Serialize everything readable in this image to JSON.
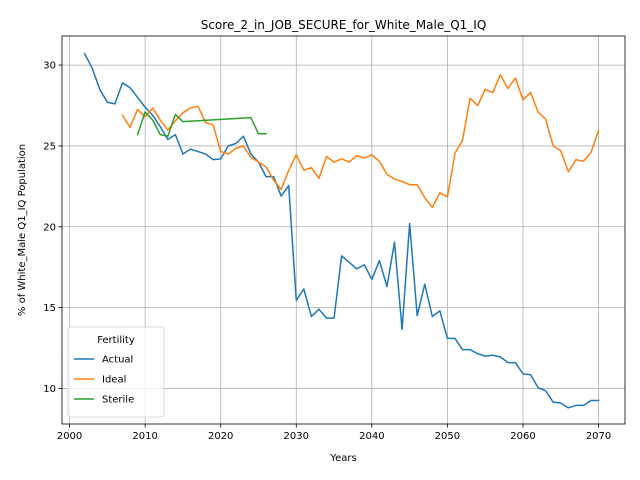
{
  "chart_data": {
    "type": "line",
    "title": "Score_2_in_JOB_SECURE_for_White_Male_Q1_IQ",
    "xlabel": "Years",
    "ylabel": "% of White_Male Q1_IQ Population",
    "xlim": [
      1999,
      2073.5
    ],
    "ylim": [
      7.8,
      31.8
    ],
    "xticks": [
      2000,
      2010,
      2020,
      2030,
      2040,
      2050,
      2060,
      2070
    ],
    "yticks": [
      10,
      15,
      20,
      25,
      30
    ],
    "grid": true,
    "legend": {
      "title": "Fertility",
      "placement": "lower-left"
    },
    "series": [
      {
        "name": "Actual",
        "color": "#1f77b4",
        "x": [
          2002,
          2003,
          2004,
          2005,
          2006,
          2007,
          2008,
          2009,
          2010,
          2011,
          2012,
          2013,
          2014,
          2015,
          2016,
          2017,
          2018,
          2019,
          2020,
          2021,
          2022,
          2023,
          2024,
          2025,
          2026,
          2027,
          2028,
          2029,
          2030,
          2031,
          2032,
          2033,
          2034,
          2035,
          2036,
          2037,
          2038,
          2039,
          2040,
          2041,
          2042,
          2043,
          2044,
          2045,
          2046,
          2047,
          2048,
          2049,
          2050,
          2051,
          2052,
          2053,
          2054,
          2055,
          2056,
          2057,
          2058,
          2059,
          2060,
          2061,
          2062,
          2063,
          2064,
          2065,
          2066,
          2067,
          2068,
          2069,
          2070
        ],
        "values": [
          30.7,
          29.8,
          28.5,
          27.7,
          27.6,
          28.9,
          28.6,
          28.0,
          27.4,
          26.9,
          26.2,
          25.4,
          25.7,
          24.5,
          24.8,
          24.65,
          24.5,
          24.15,
          24.2,
          25.0,
          25.15,
          25.6,
          24.5,
          24.0,
          23.1,
          23.1,
          21.9,
          22.55,
          15.45,
          16.15,
          14.45,
          14.9,
          14.35,
          14.35,
          18.2,
          17.8,
          17.4,
          17.65,
          16.75,
          17.9,
          16.3,
          19.05,
          13.65,
          20.2,
          14.5,
          16.45,
          14.45,
          14.8,
          13.1,
          13.1,
          12.4,
          12.4,
          12.15,
          12.0,
          12.05,
          11.95,
          11.6,
          11.6,
          10.9,
          10.85,
          10.05,
          9.85,
          9.15,
          9.1,
          8.8,
          8.95,
          8.95,
          9.25,
          9.25
        ]
      },
      {
        "name": "Ideal",
        "color": "#ff7f0e",
        "x": [
          2007,
          2008,
          2009,
          2010,
          2011,
          2012,
          2013,
          2014,
          2015,
          2016,
          2017,
          2018,
          2019,
          2020,
          2021,
          2022,
          2023,
          2024,
          2025,
          2026,
          2027,
          2028,
          2029,
          2030,
          2031,
          2032,
          2033,
          2034,
          2035,
          2036,
          2037,
          2038,
          2039,
          2040,
          2041,
          2042,
          2043,
          2044,
          2045,
          2046,
          2047,
          2048,
          2049,
          2050,
          2051,
          2052,
          2053,
          2054,
          2055,
          2056,
          2057,
          2058,
          2059,
          2060,
          2061,
          2062,
          2063,
          2064,
          2065,
          2066,
          2067,
          2068,
          2069,
          2070
        ],
        "values": [
          26.9,
          26.15,
          27.25,
          26.8,
          27.35,
          26.6,
          26.0,
          26.55,
          27.05,
          27.35,
          27.45,
          26.45,
          26.3,
          24.65,
          24.5,
          24.85,
          25.0,
          24.3,
          24.0,
          23.7,
          22.9,
          22.3,
          23.5,
          24.45,
          23.5,
          23.65,
          23.0,
          24.35,
          24.0,
          24.2,
          24.0,
          24.4,
          24.25,
          24.45,
          24.05,
          23.25,
          22.95,
          22.8,
          22.6,
          22.6,
          21.8,
          21.2,
          22.1,
          21.85,
          24.55,
          25.35,
          27.95,
          27.5,
          28.5,
          28.3,
          29.4,
          28.55,
          29.2,
          27.85,
          28.3,
          27.1,
          26.65,
          25.0,
          24.7,
          23.4,
          24.15,
          24.05,
          24.6,
          25.95
        ]
      },
      {
        "name": "Sterile",
        "color": "#2ca02c",
        "x": [
          2009,
          2010,
          2011,
          2012,
          2013,
          2014,
          2015,
          2024,
          2025,
          2026
        ],
        "values": [
          25.7,
          27.1,
          26.6,
          25.7,
          25.6,
          26.95,
          26.5,
          26.75,
          25.75,
          25.75
        ]
      }
    ]
  }
}
